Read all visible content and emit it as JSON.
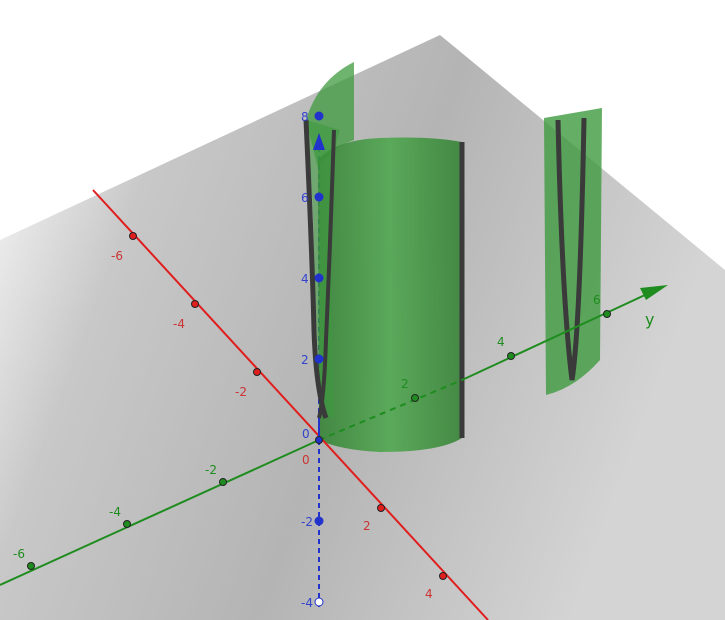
{
  "view": {
    "type": "3D graphing view",
    "background": "#ffffff"
  },
  "axes": {
    "x": {
      "color": "#e01e1e",
      "ticks": [
        {
          "value": -6,
          "label": "-6"
        },
        {
          "value": -4,
          "label": "-4"
        },
        {
          "value": -2,
          "label": "-2"
        },
        {
          "value": 2,
          "label": "2"
        },
        {
          "value": 4,
          "label": "4"
        }
      ]
    },
    "y": {
      "color": "#1e8c1e",
      "name": "y",
      "ticks": [
        {
          "value": -6,
          "label": "-6"
        },
        {
          "value": -4,
          "label": "-4"
        },
        {
          "value": -2,
          "label": "-2"
        },
        {
          "value": 2,
          "label": "2"
        },
        {
          "value": 4,
          "label": "4"
        },
        {
          "value": 6,
          "label": "6"
        }
      ]
    },
    "z": {
      "color": "#2233cc",
      "ticks": [
        {
          "value": -4,
          "label": "-4"
        },
        {
          "value": -2,
          "label": "-2"
        },
        {
          "value": 2,
          "label": "2"
        },
        {
          "value": 4,
          "label": "4"
        },
        {
          "value": 6,
          "label": "6"
        },
        {
          "value": 8,
          "label": "8"
        }
      ]
    },
    "origin_labels": {
      "x": "0",
      "z": "0"
    }
  },
  "plane": {
    "color": "#b8b8b8"
  },
  "surfaces": {
    "fill": "#3e9a3e",
    "edge": "#3a3a3a"
  }
}
